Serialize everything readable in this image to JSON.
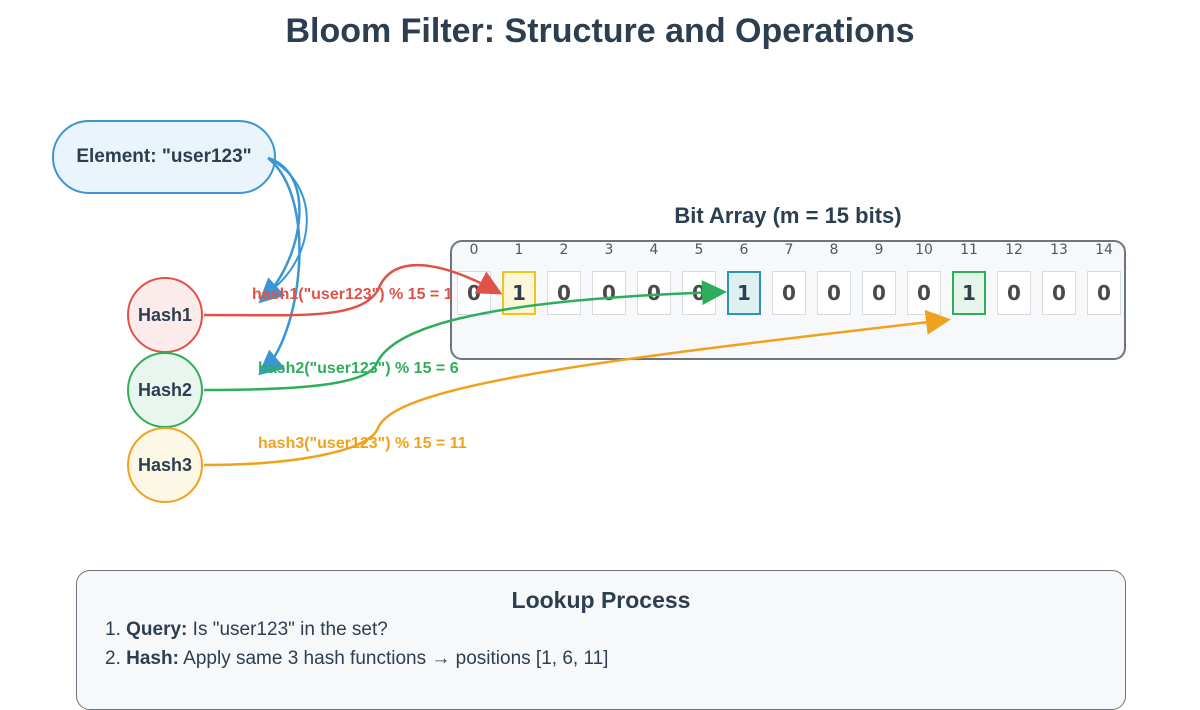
{
  "title": "Bloom Filter: Structure and Operations",
  "element": {
    "label": "Element: \"user123\""
  },
  "hashes": [
    {
      "name": "Hash1",
      "formula": "hash1(\"user123\") % 15 = 1",
      "position": 1,
      "color": "#e05247"
    },
    {
      "name": "Hash2",
      "formula": "hash2(\"user123\") % 15 = 6",
      "position": 6,
      "color": "#2eae5b"
    },
    {
      "name": "Hash3",
      "formula": "hash3(\"user123\") % 15 = 11",
      "position": 11,
      "color": "#f0a21c"
    }
  ],
  "bit_array": {
    "title": "Bit Array (m = 15 bits)",
    "indices": [
      "0",
      "1",
      "2",
      "3",
      "4",
      "5",
      "6",
      "7",
      "8",
      "9",
      "10",
      "11",
      "12",
      "13",
      "14"
    ],
    "bits": [
      "0",
      "1",
      "0",
      "0",
      "0",
      "0",
      "1",
      "0",
      "0",
      "0",
      "0",
      "1",
      "0",
      "0",
      "0"
    ],
    "highlight": {
      "1": {
        "border": "#f0c419",
        "fill": "#fdf6d8"
      },
      "6": {
        "border": "#2a97ab",
        "fill": "#dff0f3"
      },
      "11": {
        "border": "#2eae5b",
        "fill": "#e6f5ea"
      }
    }
  },
  "lookup": {
    "title": "Lookup Process",
    "steps": [
      {
        "num": "1.",
        "head": "Query:",
        "text": " Is \"user123\" in the set?"
      },
      {
        "num": "2.",
        "head": "Hash:",
        "text": " Apply same 3 hash functions → positions [1, 6, 11]"
      }
    ]
  }
}
